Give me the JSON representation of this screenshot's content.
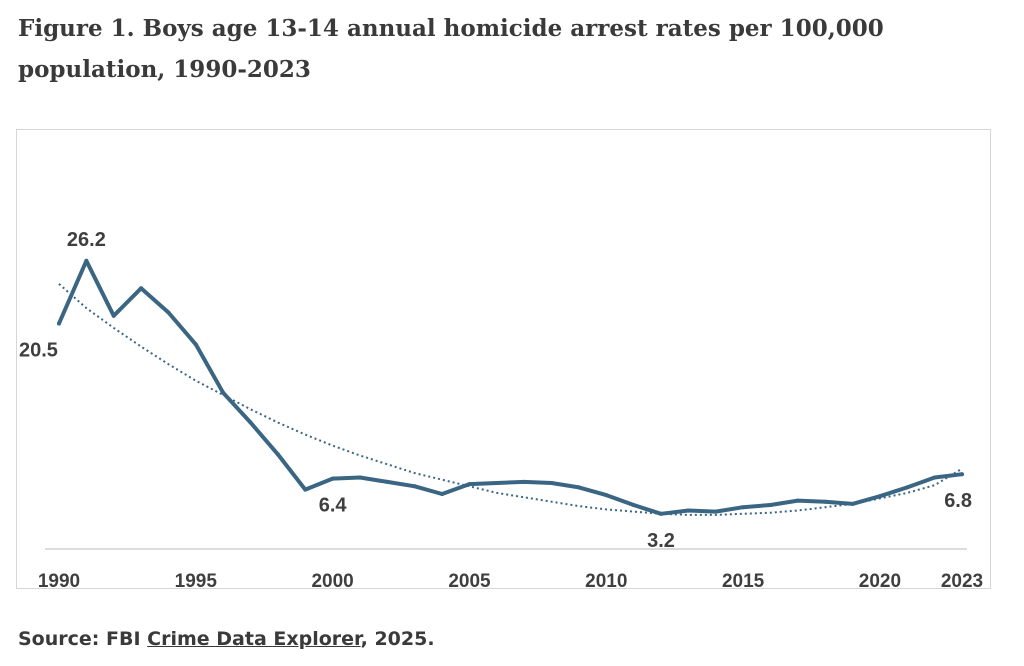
{
  "figure_title": "Figure 1. Boys age 13-14 annual homicide arrest rates per 100,000 population, 1990-2023",
  "source": {
    "prefix": "Source: FBI ",
    "link_text": "Crime Data Explorer",
    "suffix": ", 2025."
  },
  "colors": {
    "series": "#3a6683",
    "trend": "#3a6683",
    "axis": "#d0d0d0",
    "text": "#3f3f3f"
  },
  "chart_data": {
    "type": "line",
    "title": "Figure 1. Boys age 13-14 annual homicide arrest rates per 100,000 population, 1990-2023",
    "xlabel": "",
    "ylabel": "",
    "x": [
      1990,
      1991,
      1992,
      1993,
      1994,
      1995,
      1996,
      1997,
      1998,
      1999,
      2000,
      2001,
      2002,
      2003,
      2004,
      2005,
      2006,
      2007,
      2008,
      2009,
      2010,
      2011,
      2012,
      2013,
      2014,
      2015,
      2016,
      2017,
      2018,
      2019,
      2020,
      2021,
      2022,
      2023
    ],
    "series": [
      {
        "values": [
          20.5,
          26.2,
          21.2,
          23.7,
          21.5,
          18.6,
          14.2,
          11.5,
          8.6,
          5.4,
          6.4,
          6.5,
          6.1,
          5.7,
          5.0,
          5.9,
          6.0,
          6.1,
          6.0,
          5.6,
          4.9,
          4.0,
          3.2,
          3.5,
          3.4,
          3.8,
          4.0,
          4.4,
          4.3,
          4.1,
          4.8,
          5.6,
          6.5,
          6.8
        ]
      }
    ],
    "trendline": {
      "type": "polynomial",
      "values": [
        24.1,
        21.9,
        20.1,
        18.4,
        16.8,
        15.3,
        14.0,
        12.7,
        11.5,
        10.4,
        9.4,
        8.5,
        7.7,
        6.9,
        6.3,
        5.7,
        5.1,
        4.7,
        4.3,
        3.9,
        3.6,
        3.4,
        3.2,
        3.1,
        3.1,
        3.2,
        3.3,
        3.5,
        3.8,
        4.1,
        4.6,
        5.1,
        5.8,
        7.3
      ]
    },
    "x_tick_labels": [
      "1990",
      "1995",
      "2000",
      "2005",
      "2010",
      "2015",
      "2020",
      "2023"
    ],
    "annotations": [
      {
        "x": 1990,
        "y": 20.5,
        "text": "20.5",
        "position": "below"
      },
      {
        "x": 1991,
        "y": 26.2,
        "text": "26.2",
        "position": "above"
      },
      {
        "x": 2000,
        "y": 6.4,
        "text": "6.4",
        "position": "below"
      },
      {
        "x": 2012,
        "y": 3.2,
        "text": "3.2",
        "position": "below"
      },
      {
        "x": 2023,
        "y": 6.8,
        "text": "6.8",
        "position": "below"
      }
    ],
    "ylim": [
      0,
      30
    ],
    "grid": false,
    "legend": "none"
  }
}
